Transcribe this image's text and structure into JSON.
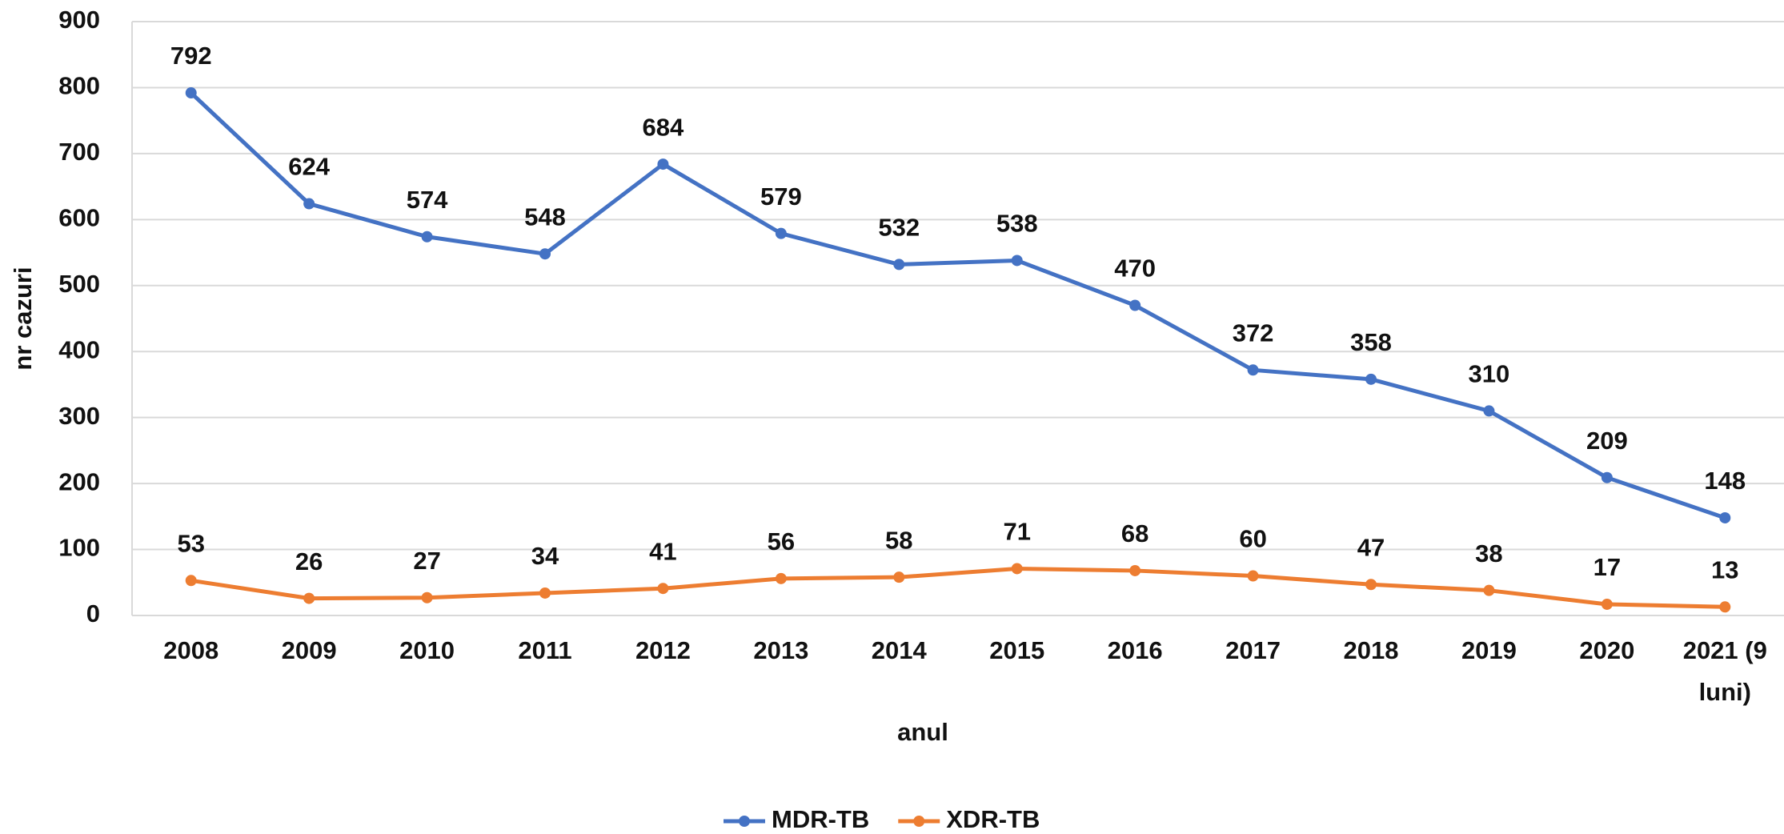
{
  "chart_data": {
    "type": "line",
    "x_label": "anul",
    "y_label": "nr cazuri",
    "categories": [
      "2008",
      "2009",
      "2010",
      "2011",
      "2012",
      "2013",
      "2014",
      "2015",
      "2016",
      "2017",
      "2018",
      "2019",
      "2020",
      "2021 (9 luni)"
    ],
    "series": [
      {
        "name": "MDR-TB",
        "color": "#4472c4",
        "values": [
          792,
          624,
          574,
          548,
          684,
          579,
          532,
          538,
          470,
          372,
          358,
          310,
          209,
          148
        ]
      },
      {
        "name": "XDR-TB",
        "color": "#ed7d31",
        "values": [
          53,
          26,
          27,
          34,
          41,
          56,
          58,
          71,
          68,
          60,
          47,
          38,
          17,
          13
        ]
      }
    ],
    "ylim": [
      0,
      900
    ],
    "yticks": [
      0,
      100,
      200,
      300,
      400,
      500,
      600,
      700,
      800,
      900
    ],
    "grid": true,
    "legend": "bottom"
  }
}
